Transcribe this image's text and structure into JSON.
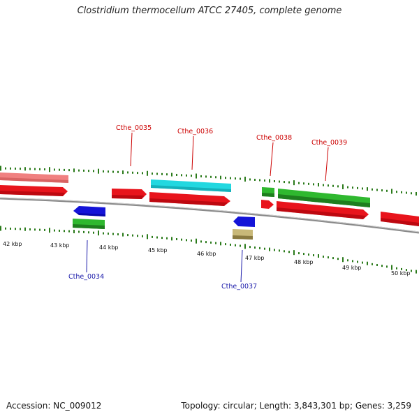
{
  "title": "Clostridium thermocellum ATCC 27405, complete genome",
  "footer": {
    "accession": "Accession: NC_009012",
    "summary": "Topology: circular; Length: 3,843,301 bp; Genes: 3,259"
  },
  "scale_labels": [
    "42 kbp",
    "43 kbp",
    "44 kbp",
    "45 kbp",
    "46 kbp",
    "47 kbp",
    "48 kbp",
    "49 kbp",
    "50 kbp"
  ],
  "gene_labels": {
    "top": [
      "Cthe_0035",
      "Cthe_0036",
      "Cthe_0038",
      "Cthe_0039"
    ],
    "bottom": [
      "Cthe_0034",
      "Cthe_0037"
    ]
  },
  "colors": {
    "backbone": "#8a8a8a",
    "cds": "#e8141c",
    "cds_faded": "#f08080",
    "rrna_like": "#22d8e0",
    "green": "#2fb82f",
    "blue": "#1414d8",
    "tan": "#c8b878",
    "tick": "#2a7a1a",
    "label_top": "#cc0000",
    "label_bottom": "#1a1aaa"
  }
}
